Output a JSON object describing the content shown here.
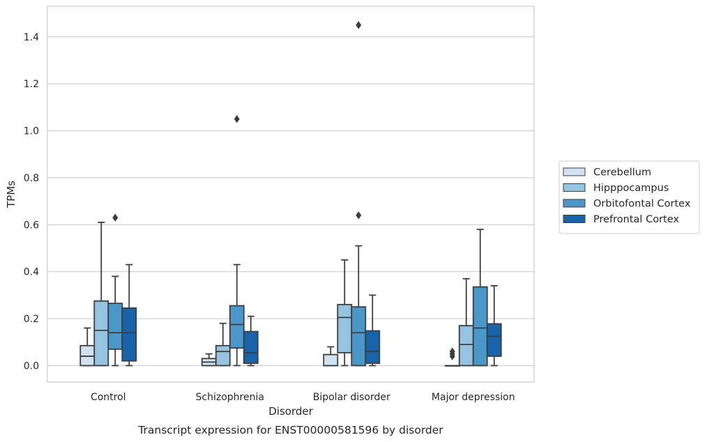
{
  "chart_data": {
    "type": "box",
    "caption": "Transcript expression for ENST00000581596 by disorder",
    "xlabel": "Disorder",
    "ylabel": "TPMs",
    "ylim": [
      -0.07,
      1.53
    ],
    "yticks": [
      0.0,
      0.2,
      0.4,
      0.6,
      0.8,
      1.0,
      1.2,
      1.4
    ],
    "ytick_labels": [
      "0.0",
      "0.2",
      "0.4",
      "0.6",
      "0.8",
      "1.0",
      "1.2",
      "1.4"
    ],
    "grid": "horizontal",
    "legend_position": "right",
    "categories": [
      "Control",
      "Schizophrenia",
      "Bipolar disorder",
      "Major depression"
    ],
    "series": [
      {
        "name": "Cerebellum",
        "color": "#d0e1f2",
        "boxes": [
          {
            "whislo": 0.0,
            "q1": 0.0,
            "med": 0.04,
            "q3": 0.085,
            "whishi": 0.16,
            "fliers": []
          },
          {
            "whislo": 0.0,
            "q1": 0.0,
            "med": 0.015,
            "q3": 0.03,
            "whishi": 0.05,
            "fliers": []
          },
          {
            "whislo": 0.0,
            "q1": 0.0,
            "med": 0.0,
            "q3": 0.047,
            "whishi": 0.08,
            "fliers": []
          },
          {
            "whislo": 0.0,
            "q1": 0.0,
            "med": 0.0,
            "q3": 0.0,
            "whishi": 0.0,
            "fliers": [
              0.04,
              0.05,
              0.06
            ]
          }
        ]
      },
      {
        "name": "Hipppocampus",
        "color": "#94c4df",
        "boxes": [
          {
            "whislo": 0.0,
            "q1": 0.0,
            "med": 0.15,
            "q3": 0.275,
            "whishi": 0.61,
            "fliers": []
          },
          {
            "whislo": 0.0,
            "q1": 0.0,
            "med": 0.06,
            "q3": 0.085,
            "whishi": 0.18,
            "fliers": []
          },
          {
            "whislo": 0.0,
            "q1": 0.055,
            "med": 0.205,
            "q3": 0.26,
            "whishi": 0.45,
            "fliers": []
          },
          {
            "whislo": 0.0,
            "q1": 0.0,
            "med": 0.09,
            "q3": 0.17,
            "whishi": 0.37,
            "fliers": []
          }
        ]
      },
      {
        "name": "Orbitofontal Cortex",
        "color": "#4a98c9",
        "boxes": [
          {
            "whislo": 0.0,
            "q1": 0.07,
            "med": 0.14,
            "q3": 0.265,
            "whishi": 0.38,
            "fliers": [
              0.63
            ]
          },
          {
            "whislo": 0.0,
            "q1": 0.075,
            "med": 0.175,
            "q3": 0.255,
            "whishi": 0.43,
            "fliers": [
              1.05
            ]
          },
          {
            "whislo": 0.0,
            "q1": 0.0,
            "med": 0.14,
            "q3": 0.25,
            "whishi": 0.51,
            "fliers": [
              0.64,
              1.45
            ]
          },
          {
            "whislo": 0.0,
            "q1": 0.0,
            "med": 0.16,
            "q3": 0.335,
            "whishi": 0.58,
            "fliers": []
          }
        ]
      },
      {
        "name": "Prefrontal Cortex",
        "color": "#1764ab",
        "boxes": [
          {
            "whislo": 0.0,
            "q1": 0.02,
            "med": 0.14,
            "q3": 0.245,
            "whishi": 0.43,
            "fliers": []
          },
          {
            "whislo": 0.0,
            "q1": 0.01,
            "med": 0.055,
            "q3": 0.145,
            "whishi": 0.21,
            "fliers": []
          },
          {
            "whislo": 0.0,
            "q1": 0.01,
            "med": 0.06,
            "q3": 0.148,
            "whishi": 0.3,
            "fliers": []
          },
          {
            "whislo": 0.0,
            "q1": 0.04,
            "med": 0.125,
            "q3": 0.178,
            "whishi": 0.34,
            "fliers": []
          }
        ]
      }
    ]
  }
}
